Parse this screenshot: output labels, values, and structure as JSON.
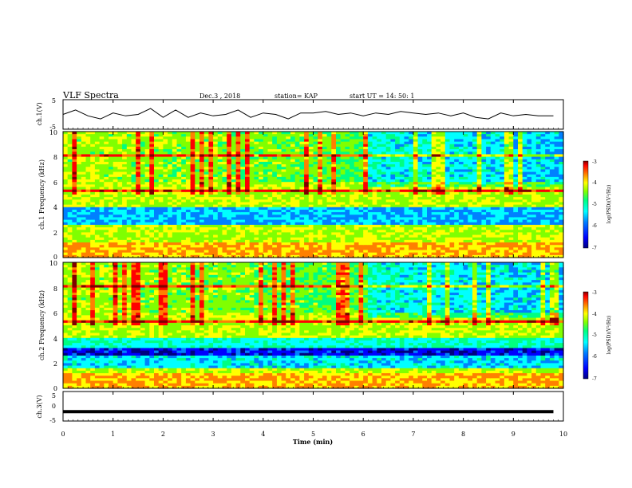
{
  "header": {
    "title": "VLF Spectra",
    "date": "Dec.3 , 2018",
    "station": "station= KAP",
    "start": "start UT = 14: 50: 1"
  },
  "colors": {
    "colormap": [
      "#00007f",
      "#0000ff",
      "#0080ff",
      "#00ffff",
      "#00ff80",
      "#80ff00",
      "#ffff00",
      "#ff8000",
      "#ff0000",
      "#7f0000"
    ],
    "trace": "#000000"
  },
  "chart_data": [
    {
      "type": "line",
      "ylabel": "ch.1(V)",
      "ylim": [
        -5,
        5
      ],
      "yticks": [
        "5",
        "-5"
      ],
      "xlim": [
        0,
        10
      ],
      "series": [
        {
          "x": [
            0,
            0.25,
            0.5,
            0.75,
            1,
            1.25,
            1.5,
            1.75,
            2,
            2.25,
            2.5,
            2.75,
            3,
            3.25,
            3.5,
            3.75,
            4,
            4.25,
            4.5,
            4.75,
            5,
            5.25,
            5.5,
            5.75,
            6,
            6.25,
            6.5,
            6.75,
            7,
            7.25,
            7.5,
            7.75,
            8,
            8.25,
            8.5,
            8.75,
            9,
            9.25,
            9.5,
            9.8
          ],
          "y": [
            0,
            1.5,
            -0.5,
            -1.5,
            0.5,
            -0.5,
            0,
            2,
            -1,
            1.5,
            -1,
            0.5,
            -0.5,
            0,
            1.5,
            -1,
            0.5,
            0,
            -1.5,
            0.5,
            0.5,
            1,
            0,
            0.5,
            -0.5,
            0.5,
            0,
            1,
            0.5,
            0,
            0.5,
            -0.5,
            0.5,
            -1,
            -1.5,
            0.5,
            -0.5,
            0,
            -0.5,
            -0.5
          ]
        }
      ]
    },
    {
      "type": "heatmap",
      "ylabel": "ch.1 Frequency (kHz)",
      "ylim": [
        0,
        10
      ],
      "yticks": [
        "0",
        "2",
        "4",
        "6",
        "8",
        "10"
      ],
      "xlim": [
        0,
        10
      ],
      "colorbar_label": "log(PSD)(V²/Hz)",
      "colorbar_range": [
        -7,
        -3
      ],
      "colorbar_ticks": [
        "-3",
        "-4",
        "-5",
        "-6",
        "-7"
      ]
    },
    {
      "type": "heatmap",
      "ylabel": "ch.2 Frequency (kHz)",
      "ylim": [
        0,
        10
      ],
      "yticks": [
        "0",
        "2",
        "4",
        "6",
        "8",
        "10"
      ],
      "xlim": [
        0,
        10
      ],
      "colorbar_label": "log(PSD)(V²/Hz)",
      "colorbar_range": [
        -7,
        -3
      ],
      "colorbar_ticks": [
        "-3",
        "-4",
        "-5",
        "-6",
        "-7"
      ]
    },
    {
      "type": "line",
      "ylabel": "ch.3(V)",
      "ylim": [
        -5,
        5
      ],
      "yticks": [
        "5",
        "0",
        "-5"
      ],
      "xlim": [
        0,
        10
      ],
      "xlabel": "Time (min)",
      "xticks": [
        "0",
        "1",
        "2",
        "3",
        "4",
        "5",
        "6",
        "7",
        "8",
        "9",
        "10"
      ],
      "series": [
        {
          "x": [
            0,
            9.8
          ],
          "y": [
            -1.8,
            -1.8
          ]
        }
      ]
    }
  ]
}
